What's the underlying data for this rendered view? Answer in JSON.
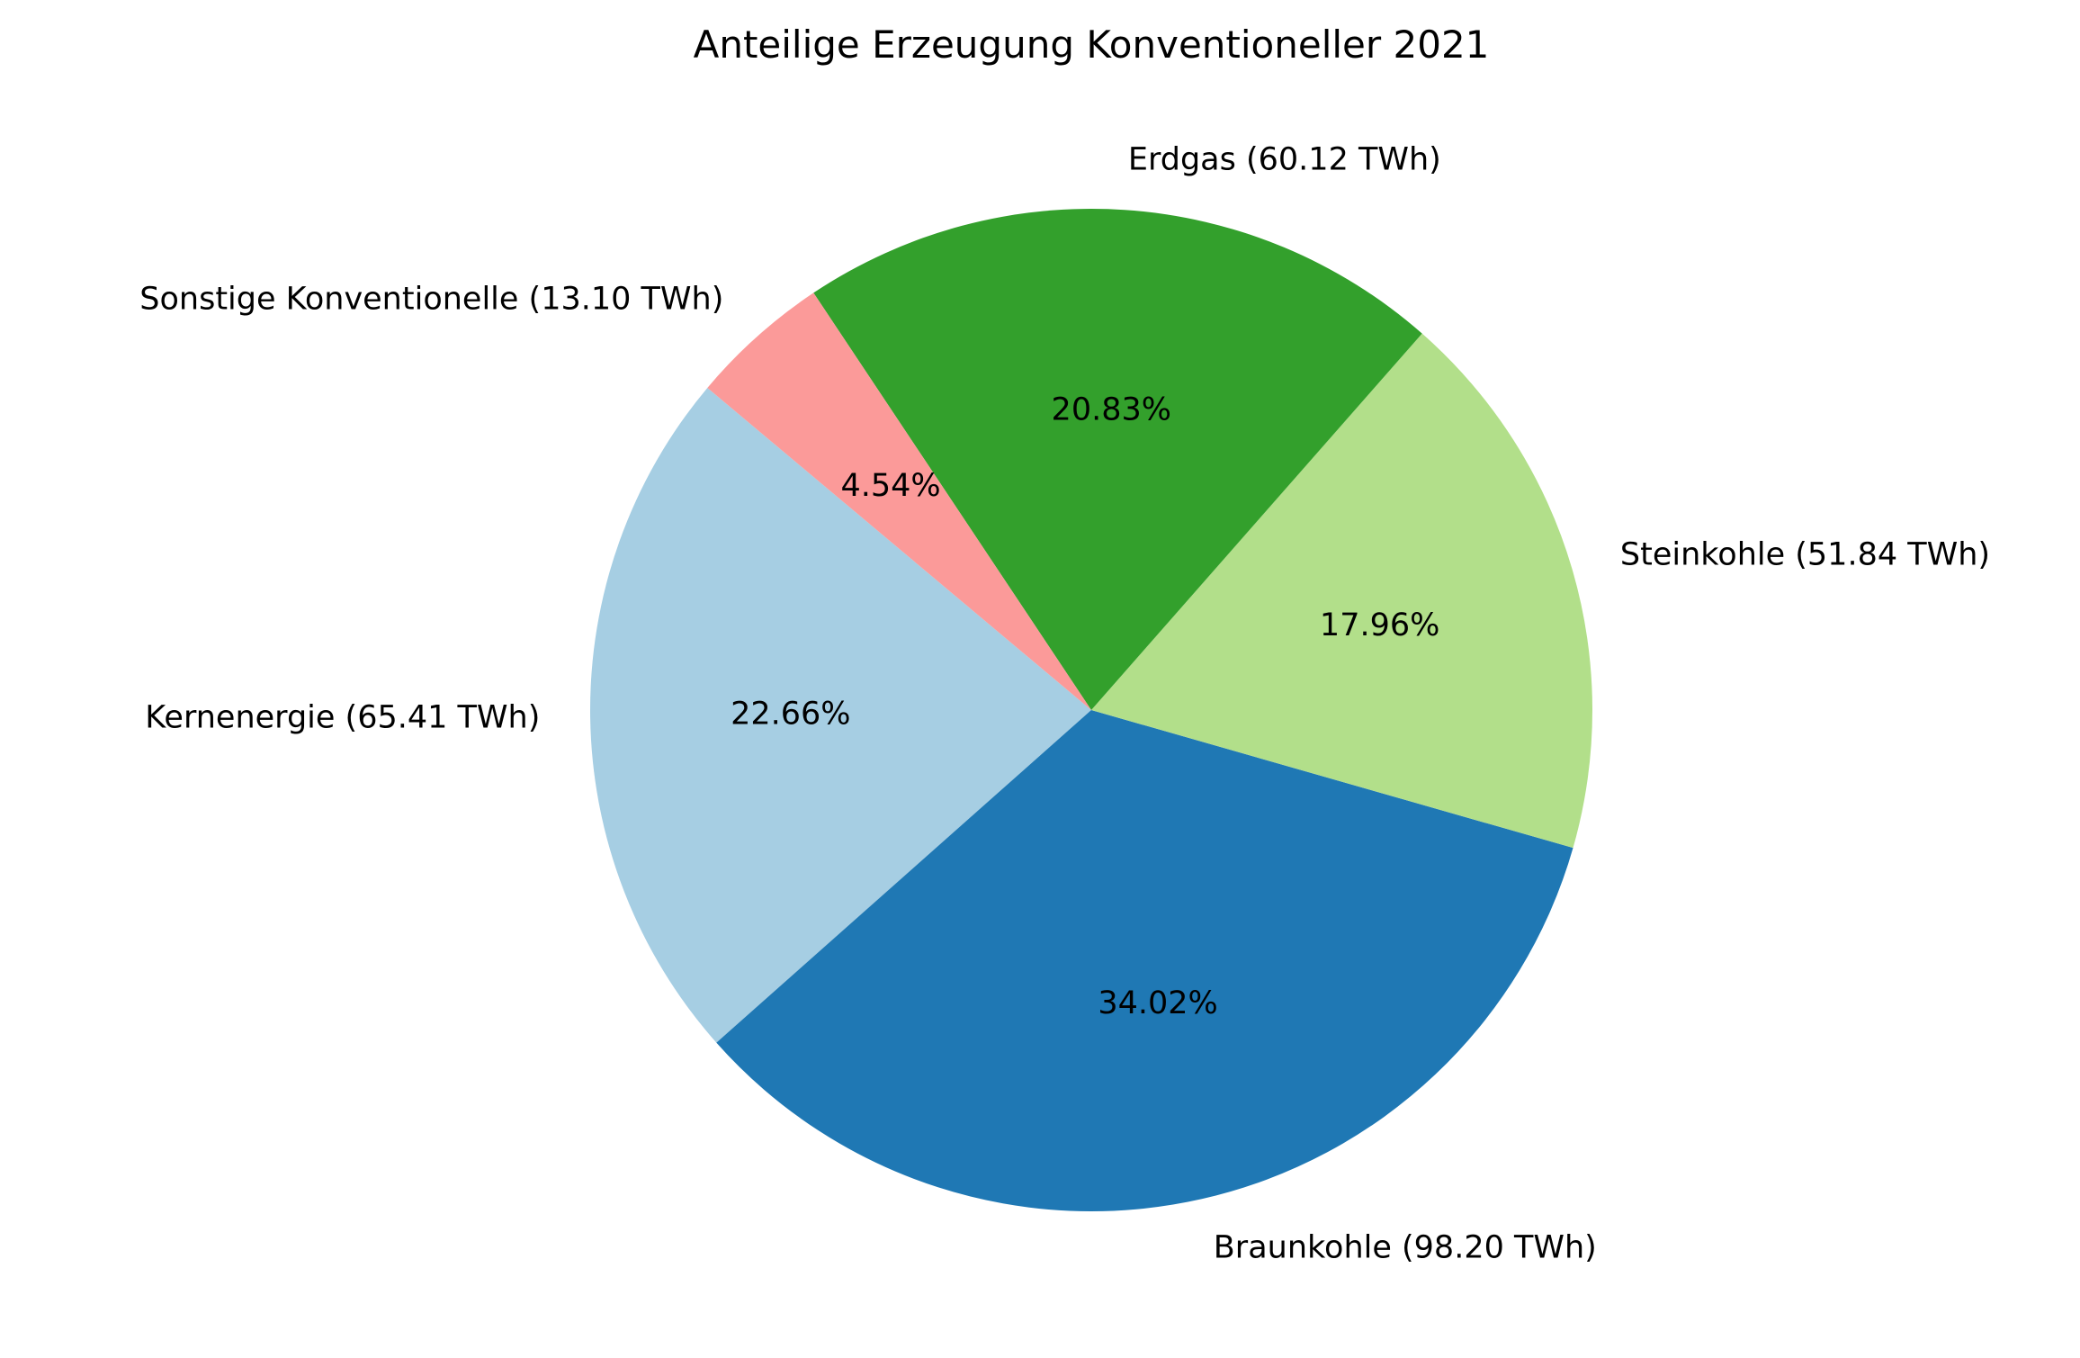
{
  "chart_data": {
    "type": "pie",
    "title": "Anteilige Erzeugung Konventioneller 2021",
    "unit": "TWh",
    "start_angle_deg": 140,
    "direction": "counterclockwise",
    "slices": [
      {
        "label": "Kernenergie (65.41 TWh)",
        "value": 65.41,
        "pct_label": "22.66%",
        "color": "#a6cee3"
      },
      {
        "label": "Braunkohle (98.20 TWh)",
        "value": 98.2,
        "pct_label": "34.02%",
        "color": "#1f78b4"
      },
      {
        "label": "Steinkohle (51.84 TWh)",
        "value": 51.84,
        "pct_label": "17.96%",
        "color": "#b2df8a"
      },
      {
        "label": "Erdgas (60.12 TWh)",
        "value": 60.12,
        "pct_label": "20.83%",
        "color": "#33a02c"
      },
      {
        "label": "Sonstige Konventionelle (13.10 TWh)",
        "value": 13.1,
        "pct_label": "4.54%",
        "color": "#fb9a99"
      }
    ],
    "legend": "none",
    "grid": false
  }
}
